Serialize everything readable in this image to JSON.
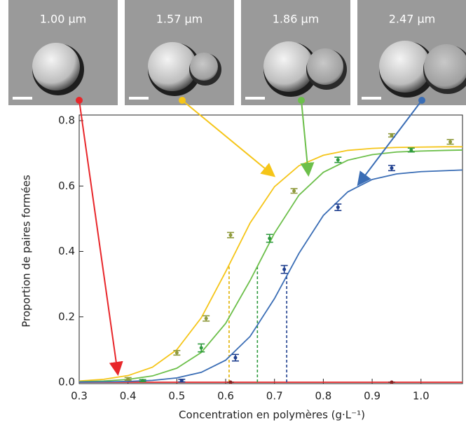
{
  "chart_data": {
    "type": "line",
    "xlabel": "Concentration en polymères (g·L⁻¹)",
    "ylabel": "Proportion de paires formées",
    "xlim": [
      0.3,
      1.085
    ],
    "ylim": [
      0,
      0.8
    ],
    "xticks": [
      0.3,
      0.4,
      0.5,
      0.6,
      0.7,
      0.8,
      0.9,
      {
        "value": 1,
        "label": "1.0"
      }
    ],
    "yticks": [
      {
        "value": 0,
        "label": "0.0"
      },
      0.2,
      0.4,
      0.6,
      0.8
    ],
    "x": [
      0.3,
      0.35,
      0.4,
      0.45,
      0.5,
      0.55,
      0.6,
      0.65,
      0.7,
      0.75,
      0.8,
      0.85,
      0.9,
      0.95,
      1.0,
      1.05,
      1.085
    ],
    "series": [
      {
        "name": "1.00  µm",
        "color": "#e8262a",
        "point_color": "#8b2020",
        "values": [
          0,
          0,
          0,
          0,
          0,
          0,
          0,
          0,
          0,
          0,
          0,
          0,
          0,
          0,
          0,
          0,
          0
        ],
        "points": {
          "x": [
            0.61,
            0.94
          ],
          "values": [
            0,
            0
          ],
          "errors": [
            0,
            0
          ]
        }
      },
      {
        "name": "1.57  µm",
        "color": "#f5c518",
        "point_color": "#8f9a3c",
        "values": [
          0.0038,
          0.0088,
          0.0203,
          0.046,
          0.0996,
          0.197,
          0.338,
          0.487,
          0.598,
          0.662,
          0.694,
          0.709,
          0.715,
          0.718,
          0.719,
          0.72,
          0.72
        ],
        "points": {
          "x": [
            0.4,
            0.5,
            0.56,
            0.61,
            0.74,
            0.94,
            1.06
          ],
          "values": [
            0.01,
            0.09,
            0.195,
            0.45,
            0.585,
            0.755,
            0.735
          ],
          "errors": [
            0.004,
            0.007,
            0.008,
            0.008,
            0.007,
            0.005,
            0.007
          ]
        },
        "threshold_x": 0.607,
        "threshold_y": 0.36
      },
      {
        "name": "1.86  µm",
        "color": "#6cbf4a",
        "point_color": "#2e9a3e",
        "values": [
          0.0016,
          0.0037,
          0.0085,
          0.0192,
          0.0428,
          0.091,
          0.18,
          0.311,
          0.456,
          0.572,
          0.642,
          0.679,
          0.696,
          0.704,
          0.707,
          0.709,
          0.71
        ],
        "points": {
          "x": [
            0.43,
            0.55,
            0.69,
            0.83,
            0.98
          ],
          "values": [
            0.005,
            0.105,
            0.44,
            0.68,
            0.71
          ],
          "errors": [
            0.003,
            0.012,
            0.012,
            0.008,
            0.006
          ]
        },
        "threshold_x": 0.665,
        "threshold_y": 0.355
      },
      {
        "name": "2.47  µm",
        "color": "#3a6db5",
        "point_color": "#1f3f8f",
        "values": [
          0.0004,
          0.001,
          0.0024,
          0.0057,
          0.0132,
          0.0302,
          0.0674,
          0.14,
          0.256,
          0.394,
          0.51,
          0.582,
          0.62,
          0.637,
          0.644,
          0.647,
          0.649
        ],
        "points": {
          "x": [
            0.51,
            0.62,
            0.72,
            0.83,
            0.94
          ],
          "values": [
            0.005,
            0.075,
            0.345,
            0.535,
            0.655
          ],
          "errors": [
            0.004,
            0.01,
            0.012,
            0.01,
            0.008
          ]
        },
        "threshold_x": 0.725,
        "threshold_y": 0.325
      }
    ]
  }
}
